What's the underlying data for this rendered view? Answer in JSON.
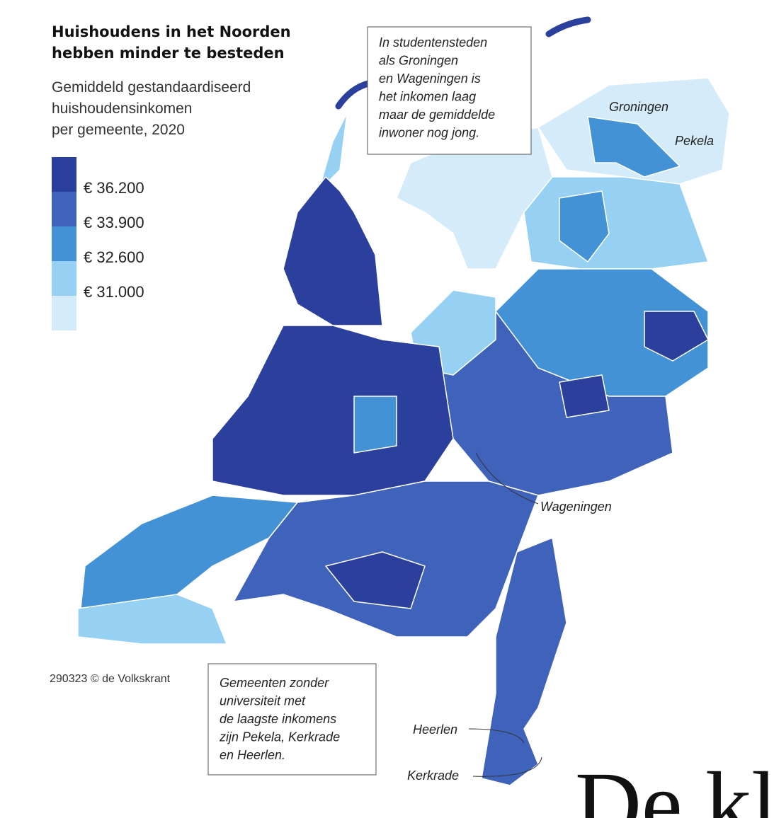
{
  "header": {
    "title": [
      "Huishoudens in het Noorden",
      "hebben minder te besteden"
    ],
    "subtitle": [
      "Gemiddeld gestandaardiseerd",
      "huishoudensinkomen",
      "per gemeente, 2020"
    ]
  },
  "legend": {
    "colors": [
      "#2b3f9c",
      "#3f62bb",
      "#4392d6",
      "#96d1f3",
      "#d4ecfa"
    ],
    "labels": [
      "€ 36.200",
      "€ 33.900",
      "€ 32.600",
      "€ 31.000"
    ]
  },
  "annotations": [
    {
      "lines": [
        "In studentensteden",
        "als Groningen",
        "en Wageningen is",
        "het inkomen laag",
        "maar de gemiddelde",
        "inwoner nog jong."
      ]
    },
    {
      "lines": [
        "Gemeenten zonder",
        "universiteit met",
        "de laagste inkomens",
        "zijn Pekela, Kerkrade",
        "en Heerlen."
      ]
    }
  ],
  "places": [
    "Groningen",
    "Pekela",
    "Wageningen",
    "Heerlen",
    "Kerkrade"
  ],
  "credit": "290323 © de Volkskrant",
  "masthead": "De kl"
}
